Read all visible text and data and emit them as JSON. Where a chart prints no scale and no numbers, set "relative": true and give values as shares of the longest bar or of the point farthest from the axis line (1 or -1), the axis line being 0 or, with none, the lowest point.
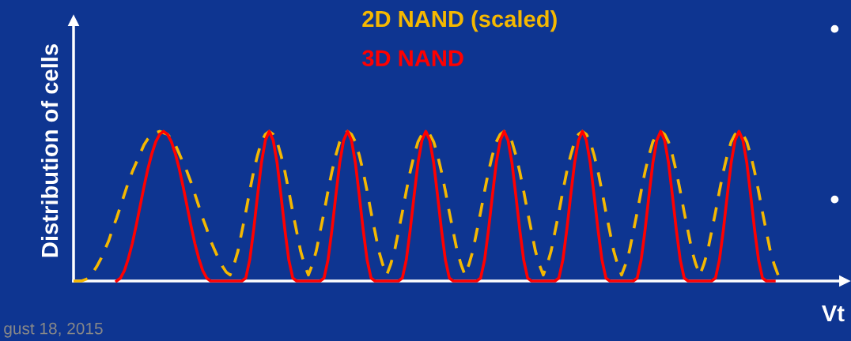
{
  "chart_data": {
    "type": "line",
    "relative": true,
    "ylabel": "Distribution of cells",
    "xlabel": "Vt",
    "marker": "none",
    "annotations": [
      "gust 18, 2015",
      "•",
      "•"
    ],
    "categories": [
      null,
      null,
      null,
      null,
      null,
      null,
      null,
      null,
      null,
      null,
      null,
      null,
      null,
      null,
      null,
      null,
      null,
      null,
      null,
      null,
      null,
      null,
      null,
      null,
      null,
      null,
      null,
      null,
      null,
      null,
      null,
      null,
      null,
      null,
      null,
      null,
      null,
      null,
      null,
      null,
      null,
      null,
      null,
      null,
      null,
      null,
      null,
      null,
      null,
      null,
      null,
      null,
      null,
      null,
      null,
      null,
      null,
      null,
      null,
      null,
      null,
      null,
      null,
      null,
      null,
      null,
      null,
      null,
      null,
      null,
      null,
      null,
      null,
      null,
      null,
      null,
      null,
      null,
      null,
      null,
      null,
      null,
      null,
      null,
      null,
      null,
      null,
      null,
      null,
      null,
      null,
      null,
      null,
      null,
      null,
      null,
      null,
      null,
      null,
      null,
      null,
      null,
      null,
      null,
      null,
      null,
      null,
      null,
      null,
      null,
      null,
      null,
      null,
      null,
      null,
      null,
      null,
      null,
      null,
      null,
      null,
      null,
      null,
      null,
      null,
      null,
      null,
      null,
      null,
      null,
      null,
      null,
      null,
      null,
      null,
      null,
      null,
      null,
      null,
      null,
      null,
      null,
      null,
      null,
      null,
      null,
      null,
      null,
      null,
      null,
      null,
      null,
      null,
      null,
      null,
      null,
      null,
      null,
      null,
      null,
      null,
      null,
      null,
      null,
      null,
      null,
      null,
      null,
      null,
      null,
      null,
      null,
      null,
      null,
      null,
      null,
      null,
      null,
      null,
      null,
      null,
      null,
      null,
      null,
      null,
      null,
      null,
      null,
      null,
      null,
      null,
      null,
      null,
      null,
      null,
      null,
      null
    ],
    "series": [
      {
        "name": "2D NAND (scaled)",
        "color": "#f5b800",
        "line_style": "dashed",
        "values": [
          0,
          0,
          0,
          0.01,
          0.02,
          0.06,
          0.1,
          0.15,
          0.21,
          0.27,
          0.35,
          0.42,
          0.5,
          0.58,
          0.66,
          0.73,
          0.79,
          0.85,
          0.91,
          0.95,
          0.98,
          0.99,
          1,
          0.99,
          0.98,
          0.95,
          0.91,
          0.85,
          0.79,
          0.73,
          0.66,
          0.58,
          0.5,
          0.42,
          0.35,
          0.27,
          0.21,
          0.15,
          0.1,
          0.06,
          0.04,
          0.11,
          0.2,
          0.33,
          0.46,
          0.6,
          0.73,
          0.84,
          0.93,
          0.98,
          1,
          0.98,
          0.93,
          0.84,
          0.73,
          0.6,
          0.46,
          0.33,
          0.2,
          0.11,
          0.04,
          0.11,
          0.2,
          0.33,
          0.46,
          0.6,
          0.73,
          0.84,
          0.93,
          0.98,
          1,
          0.98,
          0.93,
          0.84,
          0.73,
          0.6,
          0.46,
          0.33,
          0.2,
          0.11,
          0.04,
          0.11,
          0.2,
          0.33,
          0.46,
          0.6,
          0.73,
          0.84,
          0.93,
          0.98,
          1,
          0.98,
          0.93,
          0.84,
          0.73,
          0.6,
          0.46,
          0.33,
          0.2,
          0.11,
          0.04,
          0.11,
          0.2,
          0.33,
          0.46,
          0.6,
          0.73,
          0.84,
          0.93,
          0.98,
          1,
          0.98,
          0.93,
          0.84,
          0.73,
          0.6,
          0.46,
          0.33,
          0.2,
          0.11,
          0.04,
          0.11,
          0.2,
          0.33,
          0.46,
          0.6,
          0.73,
          0.84,
          0.93,
          0.98,
          1,
          0.98,
          0.93,
          0.84,
          0.73,
          0.6,
          0.46,
          0.33,
          0.2,
          0.11,
          0.04,
          0.11,
          0.2,
          0.33,
          0.46,
          0.6,
          0.73,
          0.84,
          0.93,
          0.98,
          1,
          0.98,
          0.93,
          0.84,
          0.73,
          0.6,
          0.46,
          0.33,
          0.2,
          0.11,
          0.04,
          0.11,
          0.2,
          0.33,
          0.46,
          0.6,
          0.73,
          0.84,
          0.93,
          0.98,
          1,
          0.98,
          0.93,
          0.84,
          0.73,
          0.6,
          0.46,
          0.33,
          0.2,
          0.11,
          0.04,
          0,
          null,
          null,
          null,
          null,
          null,
          null,
          null,
          null,
          null,
          null,
          null,
          null,
          null,
          null,
          null
        ]
      },
      {
        "name": "3D NAND",
        "color": "#ff0000",
        "line_style": "solid",
        "values": [
          null,
          null,
          null,
          null,
          null,
          null,
          null,
          null,
          null,
          null,
          null,
          0,
          0.02,
          0.07,
          0.15,
          0.25,
          0.37,
          0.5,
          0.63,
          0.75,
          0.85,
          0.93,
          0.98,
          1,
          0.98,
          0.93,
          0.85,
          0.75,
          0.63,
          0.5,
          0.37,
          0.25,
          0.15,
          0.07,
          0.02,
          0,
          0,
          0,
          0,
          0,
          0,
          0,
          0,
          0,
          0.02,
          0.14,
          0.34,
          0.57,
          0.79,
          0.94,
          1,
          0.94,
          0.79,
          0.57,
          0.34,
          0.14,
          0.02,
          0,
          0,
          0,
          0,
          0,
          0,
          0,
          0.02,
          0.14,
          0.34,
          0.57,
          0.79,
          0.94,
          1,
          0.94,
          0.79,
          0.57,
          0.34,
          0.14,
          0.02,
          0,
          0,
          0,
          0,
          0,
          0,
          0,
          0.02,
          0.14,
          0.34,
          0.57,
          0.79,
          0.94,
          1,
          0.94,
          0.79,
          0.57,
          0.34,
          0.14,
          0.02,
          0,
          0,
          0,
          0,
          0,
          0,
          0,
          0.02,
          0.14,
          0.34,
          0.57,
          0.79,
          0.94,
          1,
          0.94,
          0.79,
          0.57,
          0.34,
          0.14,
          0.02,
          0,
          0,
          0,
          0,
          0,
          0,
          0,
          0.02,
          0.14,
          0.34,
          0.57,
          0.79,
          0.94,
          1,
          0.94,
          0.79,
          0.57,
          0.34,
          0.14,
          0.02,
          0,
          0,
          0,
          0,
          0,
          0,
          0,
          0.02,
          0.14,
          0.34,
          0.57,
          0.79,
          0.94,
          1,
          0.94,
          0.79,
          0.57,
          0.34,
          0.14,
          0.02,
          0,
          0,
          0,
          0,
          0,
          0,
          0,
          0.02,
          0.14,
          0.34,
          0.57,
          0.79,
          0.94,
          1,
          0.94,
          0.79,
          0.57,
          0.34,
          0.14,
          0.02,
          0,
          0,
          0,
          null,
          null,
          null,
          null,
          null,
          null,
          null,
          null,
          null,
          null,
          null,
          null,
          null,
          null,
          null,
          null,
          null
        ]
      }
    ]
  }
}
